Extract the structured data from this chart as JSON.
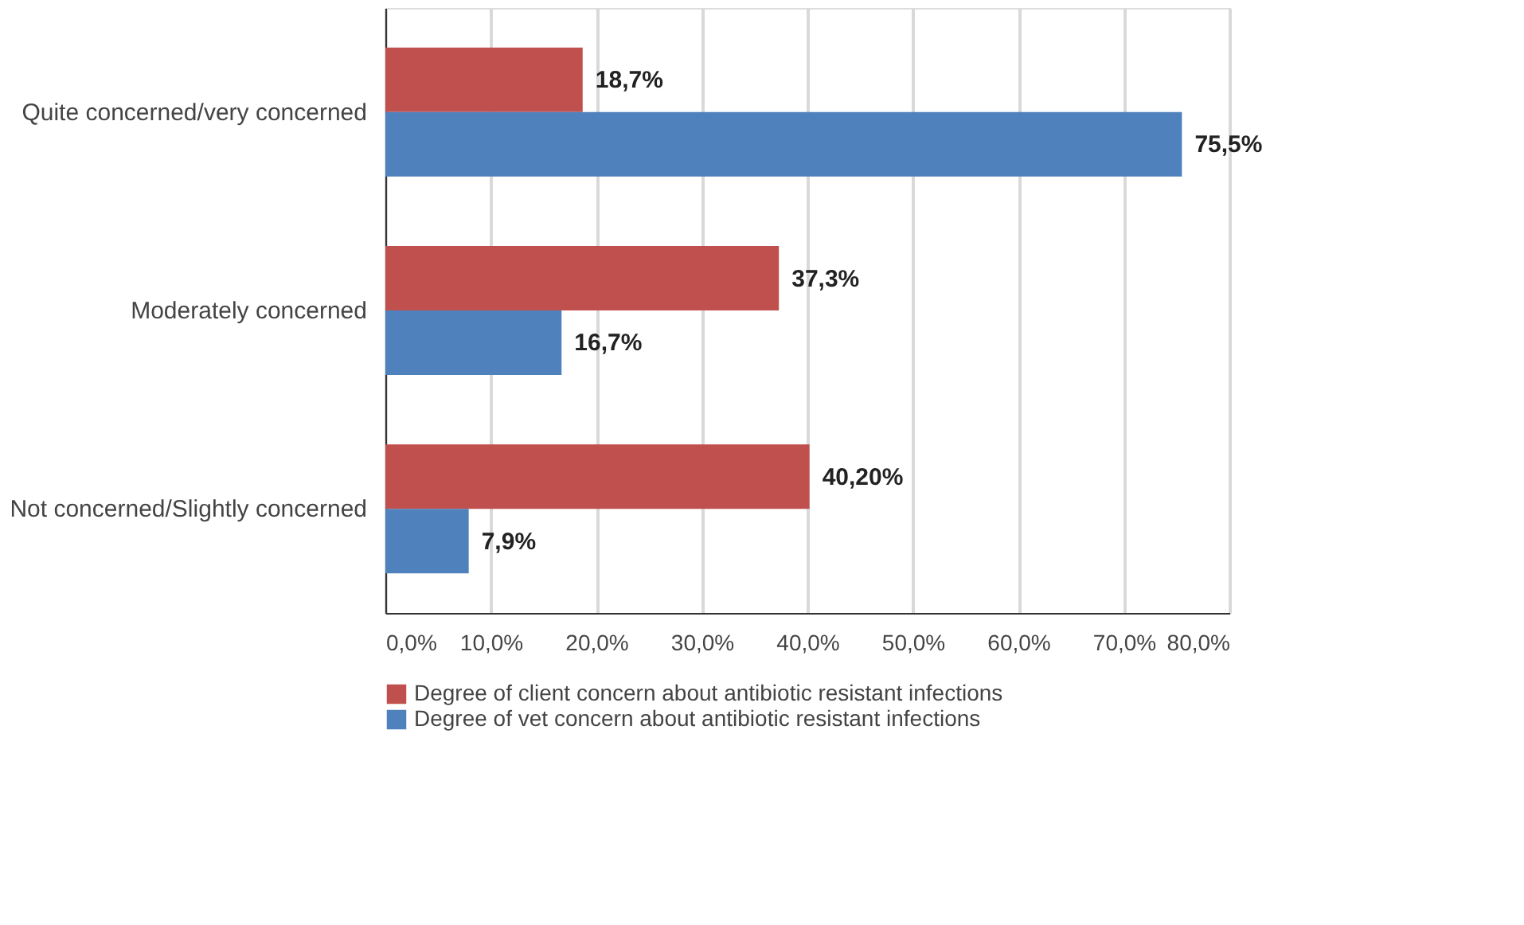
{
  "chart_data": {
    "type": "bar",
    "orientation": "horizontal",
    "categories": [
      "Quite concerned/very concerned",
      "Moderately concerned",
      "Not concerned/Slightly concerned"
    ],
    "series": [
      {
        "name": "Degree of client concern about antibiotic resistant infections",
        "color": "#c0504d",
        "values": [
          18.7,
          37.3,
          40.2
        ],
        "value_labels": [
          "18,7%",
          "37,3%",
          "40,20%"
        ]
      },
      {
        "name": "Degree of vet concern about antibiotic resistant infections",
        "color": "#4f81bd",
        "values": [
          75.5,
          16.7,
          7.9
        ],
        "value_labels": [
          "75,5%",
          "16,7%",
          "7,9%"
        ]
      }
    ],
    "xlim": [
      0,
      80
    ],
    "xticks": [
      {
        "value": 0,
        "label": "0,0%"
      },
      {
        "value": 10,
        "label": "10,0%"
      },
      {
        "value": 20,
        "label": "20,0%"
      },
      {
        "value": 30,
        "label": "30,0%"
      },
      {
        "value": 40,
        "label": "40,0%"
      },
      {
        "value": 50,
        "label": "50,0%"
      },
      {
        "value": 60,
        "label": "60,0%"
      },
      {
        "value": 70,
        "label": "70,0%"
      },
      {
        "value": 80,
        "label": "80,0%"
      }
    ],
    "grid": "x",
    "legend": "bottom"
  }
}
